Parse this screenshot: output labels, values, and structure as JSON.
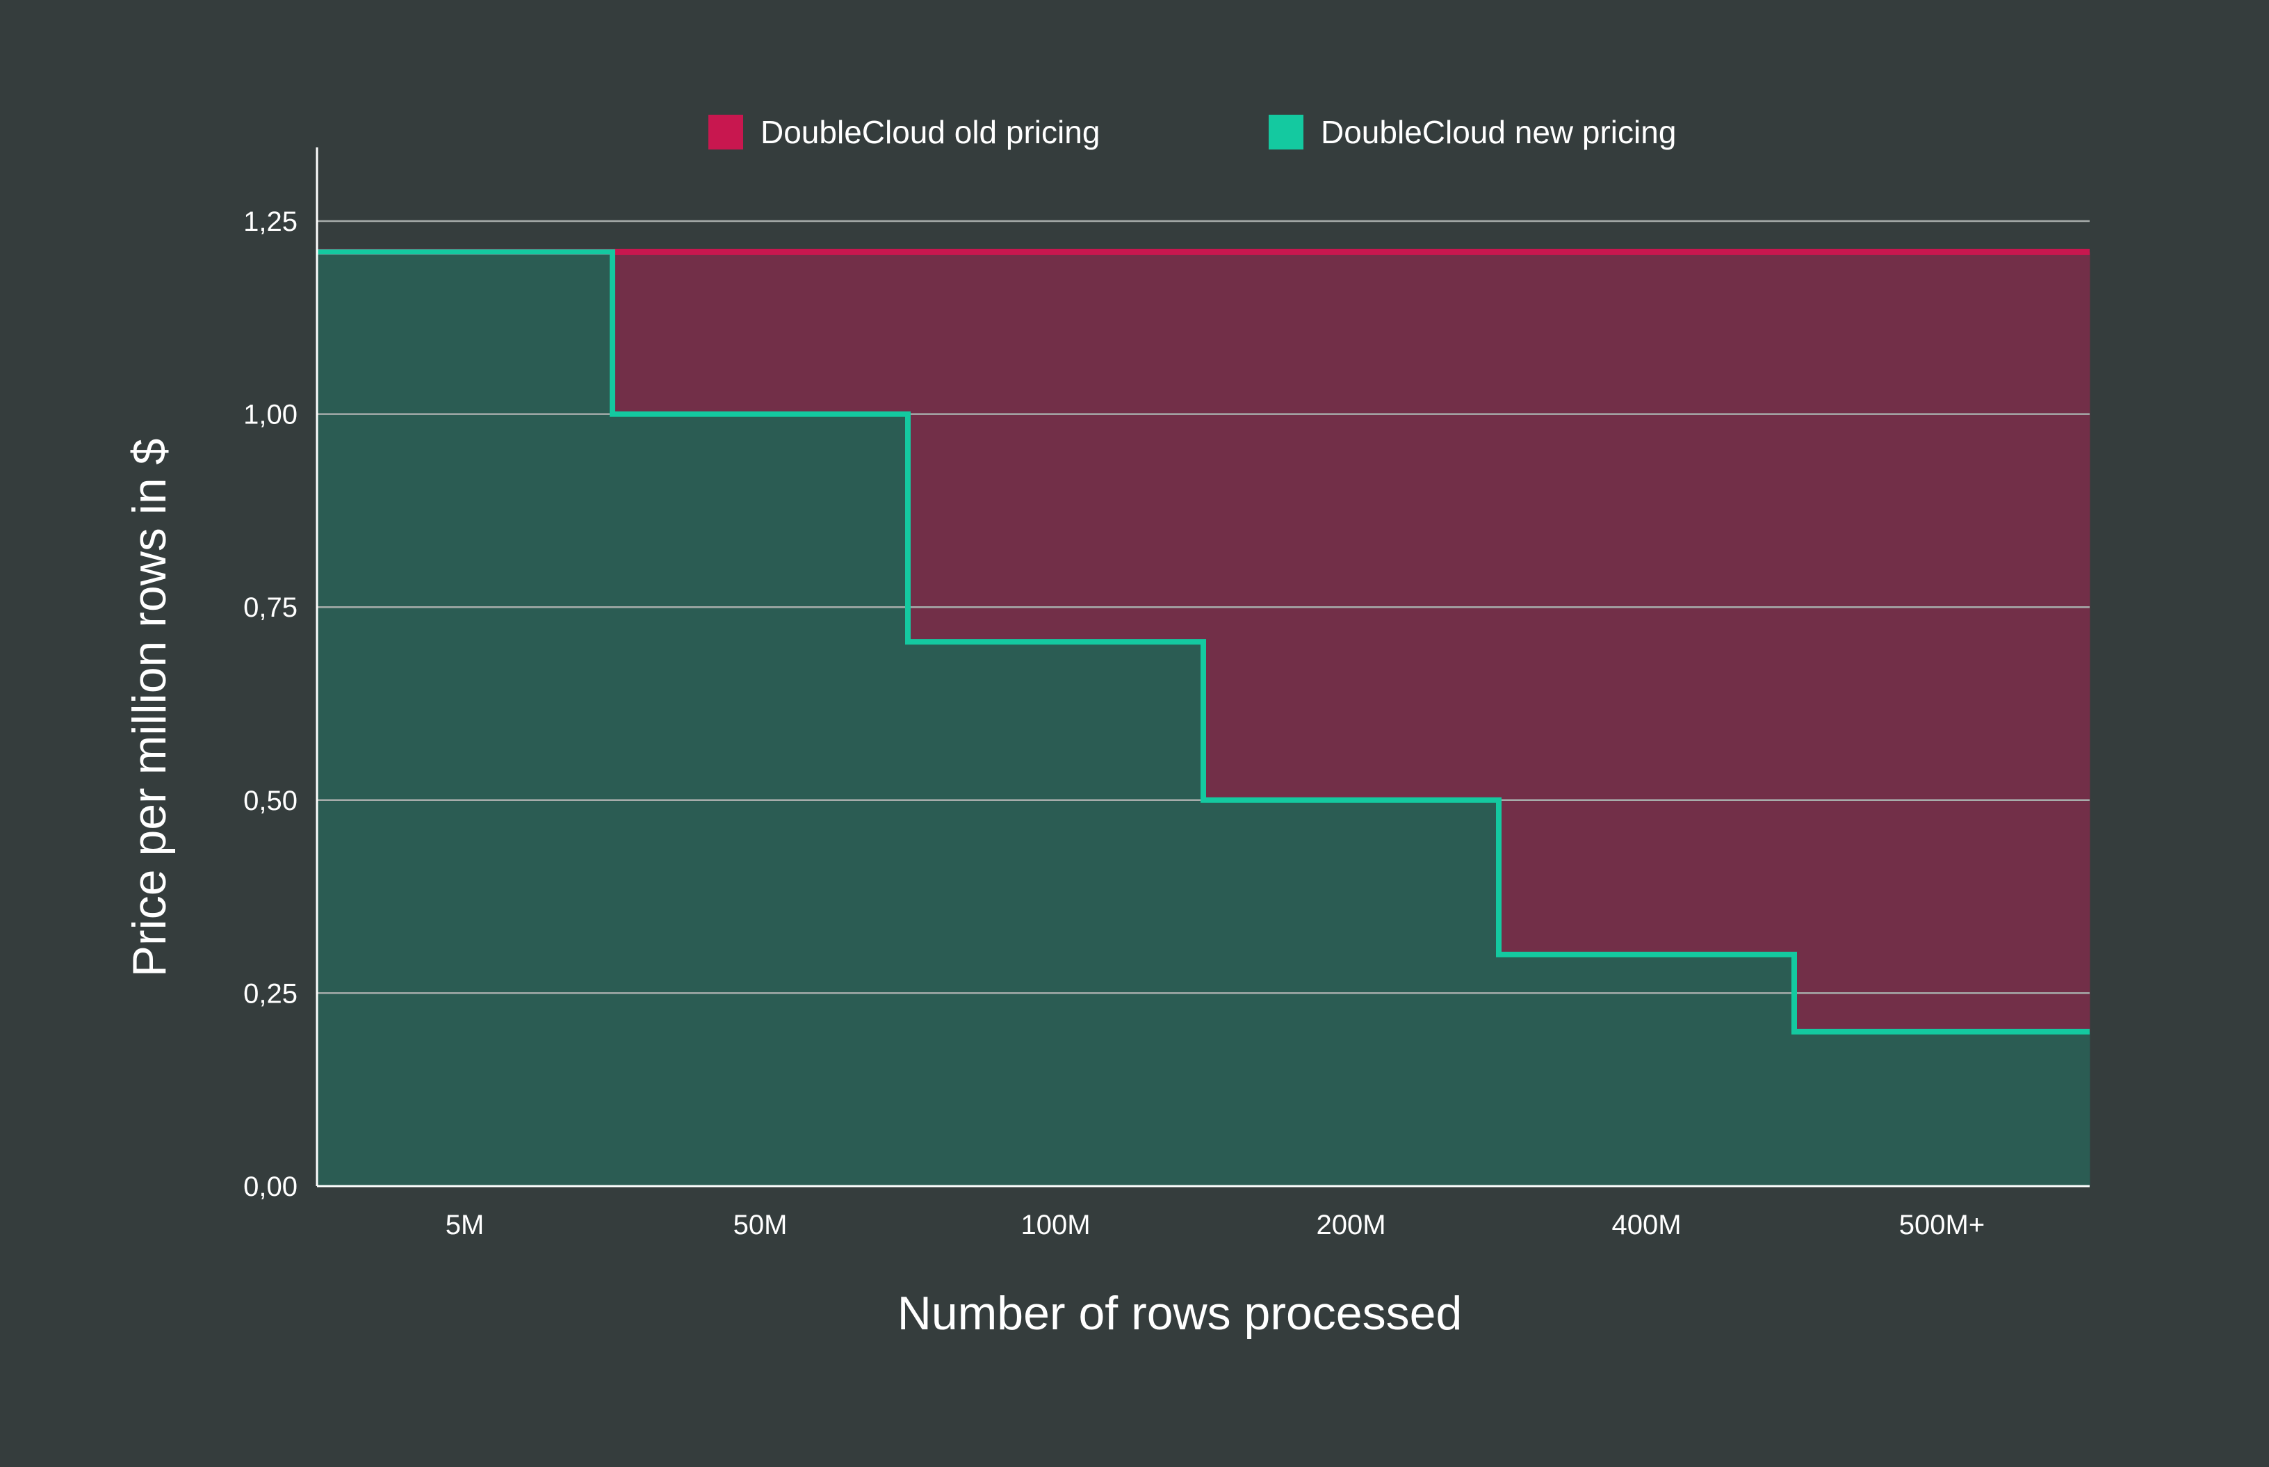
{
  "chart_data": {
    "type": "area",
    "step": true,
    "categories": [
      "5M",
      "50M",
      "100M",
      "200M",
      "400M",
      "500M+"
    ],
    "series": [
      {
        "name": "DoubleCloud old pricing",
        "color": "#c8174f",
        "fill": "#722f48",
        "values": [
          1.21,
          1.21,
          1.21,
          1.21,
          1.21,
          1.21
        ]
      },
      {
        "name": "DoubleCloud new pricing",
        "color": "#14c9a0",
        "fill": "#2b5c53",
        "values": [
          1.21,
          1.0,
          0.705,
          0.5,
          0.3,
          0.2
        ]
      }
    ],
    "xlabel": "Number of rows processed",
    "ylabel": "Price per million rows in $",
    "ylim": [
      0,
      1.25
    ],
    "yticks": [
      "0,00",
      "0,25",
      "0,50",
      "0,75",
      "1,00",
      "1,25"
    ],
    "grid": true,
    "legend": "top-center"
  },
  "colors": {
    "background": "#353d3d",
    "grid": "#a7adab",
    "axis": "#ffffff"
  }
}
